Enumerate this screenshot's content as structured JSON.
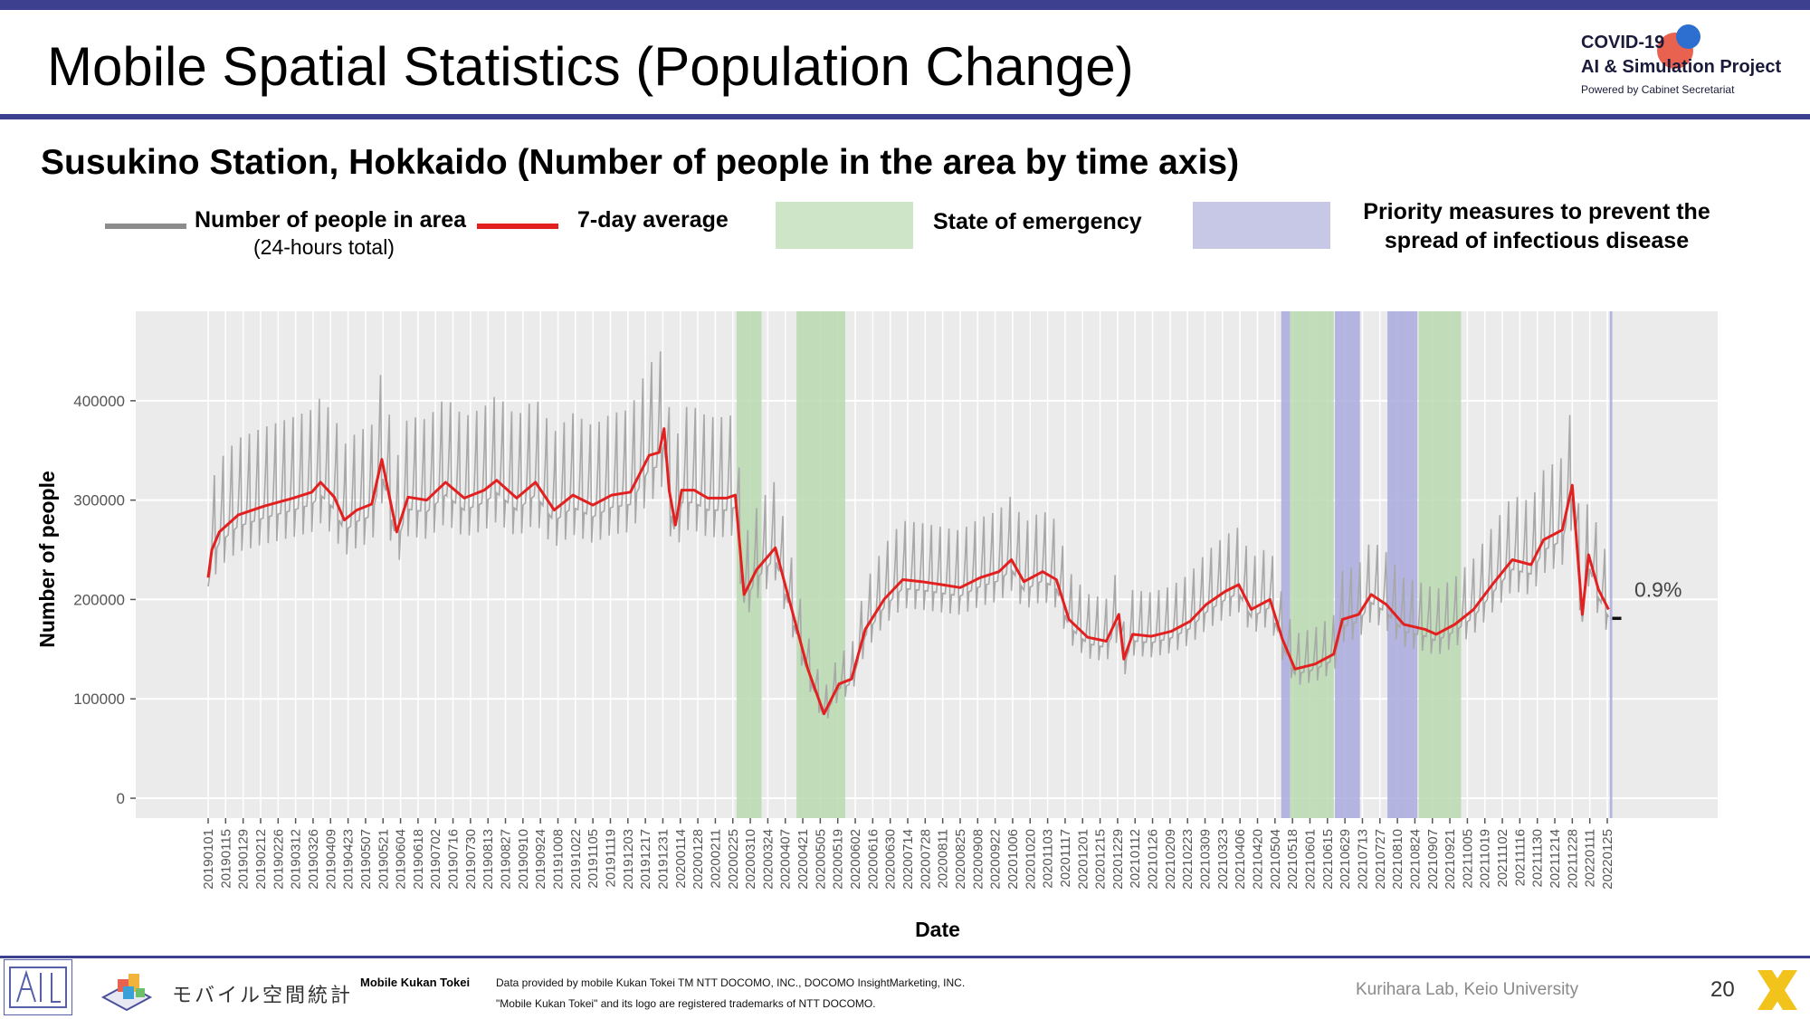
{
  "slide": {
    "title": "Mobile Spatial Statistics (Population Change)",
    "subtitle": "Susukino Station, Hokkaido (Number of people in the area by time axis)",
    "page_number": "20",
    "colors": {
      "bar": "#3d3f8f",
      "raw": "#a8a8a8",
      "avg": "#e32020",
      "emergency": "#b9d9b0",
      "priority": "#a9aade",
      "panel": "#ebebeb"
    }
  },
  "logo": {
    "line1": "COVID-19",
    "line2": "AI & Simulation Project",
    "line3": "Powered by Cabinet Secretariat"
  },
  "legend": {
    "raw_label": "Number of people in area",
    "raw_sub": "(24-hours total)",
    "avg_label": "7-day average",
    "emergency_label": "State of emergency",
    "priority_label": "Priority measures to prevent the spread of infectious disease"
  },
  "footer": {
    "mk_brand": "モバイル空間統計",
    "mk_name": "Mobile Kukan Tokei",
    "fine1": "Data provided by mobile Kukan Tokei TM NTT DOCOMO, INC., DOCOMO InsightMarketing, INC.",
    "fine2": "\"Mobile Kukan Tokei\" and its logo are registered trademarks of NTT DOCOMO.",
    "credit": "Kurihara Lab, Keio University"
  },
  "chart_data": {
    "type": "line",
    "title": "",
    "xlabel": "Date",
    "ylabel": "Number of people",
    "ylim": [
      -20000,
      490000
    ],
    "yticks": [
      0,
      100000,
      200000,
      300000,
      400000
    ],
    "ytick_labels": [
      "0",
      "100000",
      "200000",
      "300000",
      "400000"
    ],
    "grid": true,
    "x_tick_labels": [
      "20190101",
      "20190115",
      "20190129",
      "20190212",
      "20190226",
      "20190312",
      "20190326",
      "20190409",
      "20190423",
      "20190507",
      "20190521",
      "20190604",
      "20190618",
      "20190702",
      "20190716",
      "20190730",
      "20190813",
      "20190827",
      "20190910",
      "20190924",
      "20191008",
      "20191022",
      "20191105",
      "20191119",
      "20191203",
      "20191217",
      "20191231",
      "20200114",
      "20200128",
      "20200211",
      "20200225",
      "20200310",
      "20200324",
      "20200407",
      "20200421",
      "20200505",
      "20200519",
      "20200602",
      "20200616",
      "20200630",
      "20200714",
      "20200728",
      "20200811",
      "20200825",
      "20200908",
      "20200922",
      "20201006",
      "20201020",
      "20201103",
      "20201117",
      "20201201",
      "20201215",
      "20201229",
      "20210112",
      "20210126",
      "20210209",
      "20210223",
      "20210309",
      "20210323",
      "20210406",
      "20210420",
      "20210504",
      "20210518",
      "20210601",
      "20210615",
      "20210629",
      "20210713",
      "20210727",
      "20210810",
      "20210824",
      "20210907",
      "20210921",
      "20211005",
      "20211019",
      "20211102",
      "20211116",
      "20211130",
      "20211214",
      "20211228",
      "20220111",
      "20220125"
    ],
    "emergency_periods": [
      [
        "2020-02-28",
        "2020-03-19"
      ],
      [
        "2020-04-16",
        "2020-05-25"
      ],
      [
        "2021-05-16",
        "2021-06-20"
      ],
      [
        "2021-08-27",
        "2021-09-30"
      ]
    ],
    "priority_periods": [
      [
        "2021-05-09",
        "2021-05-16"
      ],
      [
        "2021-06-21",
        "2021-07-11"
      ],
      [
        "2021-08-02",
        "2021-08-26"
      ],
      [
        "2022-01-27",
        "2022-01-29"
      ]
    ],
    "avg_keypoints": [
      [
        "2019-01-01",
        222000
      ],
      [
        "2019-01-04",
        250000
      ],
      [
        "2019-01-10",
        268000
      ],
      [
        "2019-01-25",
        285000
      ],
      [
        "2019-02-15",
        294000
      ],
      [
        "2019-03-10",
        302000
      ],
      [
        "2019-03-25",
        308000
      ],
      [
        "2019-04-01",
        318000
      ],
      [
        "2019-04-12",
        303000
      ],
      [
        "2019-04-20",
        280000
      ],
      [
        "2019-04-30",
        290000
      ],
      [
        "2019-05-12",
        296000
      ],
      [
        "2019-05-20",
        341000
      ],
      [
        "2019-05-25",
        310000
      ],
      [
        "2019-06-01",
        268000
      ],
      [
        "2019-06-10",
        303000
      ],
      [
        "2019-06-25",
        300000
      ],
      [
        "2019-07-10",
        318000
      ],
      [
        "2019-07-25",
        302000
      ],
      [
        "2019-08-10",
        310000
      ],
      [
        "2019-08-20",
        320000
      ],
      [
        "2019-09-05",
        302000
      ],
      [
        "2019-09-20",
        318000
      ],
      [
        "2019-10-05",
        290000
      ],
      [
        "2019-10-20",
        305000
      ],
      [
        "2019-11-05",
        295000
      ],
      [
        "2019-11-20",
        305000
      ],
      [
        "2019-12-05",
        308000
      ],
      [
        "2019-12-20",
        345000
      ],
      [
        "2019-12-28",
        348000
      ],
      [
        "2020-01-01",
        372000
      ],
      [
        "2020-01-05",
        310000
      ],
      [
        "2020-01-10",
        275000
      ],
      [
        "2020-01-15",
        310000
      ],
      [
        "2020-01-25",
        310000
      ],
      [
        "2020-02-05",
        302000
      ],
      [
        "2020-02-20",
        302000
      ],
      [
        "2020-02-27",
        305000
      ],
      [
        "2020-03-05",
        205000
      ],
      [
        "2020-03-15",
        230000
      ],
      [
        "2020-03-30",
        252000
      ],
      [
        "2020-04-10",
        200000
      ],
      [
        "2020-04-25",
        130000
      ],
      [
        "2020-05-08",
        85000
      ],
      [
        "2020-05-20",
        115000
      ],
      [
        "2020-05-30",
        120000
      ],
      [
        "2020-06-10",
        170000
      ],
      [
        "2020-06-25",
        200000
      ],
      [
        "2020-07-10",
        220000
      ],
      [
        "2020-07-25",
        218000
      ],
      [
        "2020-08-10",
        215000
      ],
      [
        "2020-08-25",
        212000
      ],
      [
        "2020-09-10",
        222000
      ],
      [
        "2020-09-25",
        228000
      ],
      [
        "2020-10-05",
        240000
      ],
      [
        "2020-10-15",
        218000
      ],
      [
        "2020-10-30",
        228000
      ],
      [
        "2020-11-10",
        220000
      ],
      [
        "2020-11-20",
        180000
      ],
      [
        "2020-12-05",
        162000
      ],
      [
        "2020-12-20",
        158000
      ],
      [
        "2020-12-30",
        185000
      ],
      [
        "2021-01-03",
        140000
      ],
      [
        "2021-01-10",
        165000
      ],
      [
        "2021-01-25",
        163000
      ],
      [
        "2021-02-10",
        168000
      ],
      [
        "2021-02-25",
        178000
      ],
      [
        "2021-03-10",
        195000
      ],
      [
        "2021-03-25",
        208000
      ],
      [
        "2021-04-05",
        215000
      ],
      [
        "2021-04-15",
        190000
      ],
      [
        "2021-04-30",
        200000
      ],
      [
        "2021-05-10",
        160000
      ],
      [
        "2021-05-20",
        130000
      ],
      [
        "2021-06-05",
        135000
      ],
      [
        "2021-06-20",
        145000
      ],
      [
        "2021-06-27",
        180000
      ],
      [
        "2021-07-10",
        185000
      ],
      [
        "2021-07-20",
        205000
      ],
      [
        "2021-08-01",
        195000
      ],
      [
        "2021-08-15",
        175000
      ],
      [
        "2021-09-01",
        170000
      ],
      [
        "2021-09-10",
        165000
      ],
      [
        "2021-09-25",
        175000
      ],
      [
        "2021-10-10",
        190000
      ],
      [
        "2021-10-25",
        215000
      ],
      [
        "2021-11-10",
        240000
      ],
      [
        "2021-11-25",
        235000
      ],
      [
        "2021-12-05",
        260000
      ],
      [
        "2021-12-20",
        270000
      ],
      [
        "2021-12-28",
        315000
      ],
      [
        "2022-01-05",
        185000
      ],
      [
        "2022-01-10",
        245000
      ],
      [
        "2022-01-18",
        210000
      ],
      [
        "2022-01-26",
        190000
      ]
    ],
    "projection": {
      "from": [
        "2022-01-29",
        181000
      ],
      "to": [
        "2022-02-08",
        181000
      ],
      "label": "0.9%"
    }
  }
}
